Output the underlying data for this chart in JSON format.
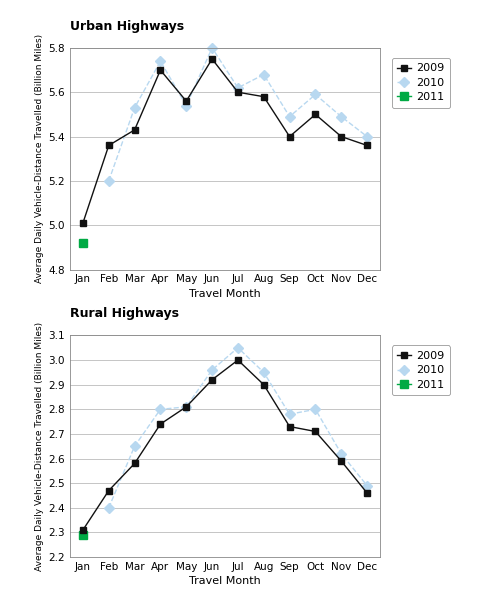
{
  "months": [
    "Jan",
    "Feb",
    "Mar",
    "Apr",
    "May",
    "Jun",
    "Jul",
    "Aug",
    "Sep",
    "Oct",
    "Nov",
    "Dec"
  ],
  "urban": {
    "2009": [
      5.01,
      5.36,
      5.43,
      5.7,
      5.56,
      5.75,
      5.6,
      5.58,
      5.4,
      5.5,
      5.4,
      5.36
    ],
    "2010": [
      null,
      5.2,
      5.53,
      5.74,
      5.54,
      5.8,
      5.62,
      5.68,
      5.49,
      5.59,
      5.49,
      5.4
    ],
    "2011": [
      4.92,
      null,
      null,
      null,
      null,
      null,
      null,
      null,
      null,
      null,
      null,
      null
    ]
  },
  "rural": {
    "2009": [
      2.31,
      2.47,
      2.58,
      2.74,
      2.81,
      2.92,
      3.0,
      2.9,
      2.73,
      2.71,
      2.59,
      2.46
    ],
    "2010": [
      null,
      2.4,
      2.65,
      2.8,
      2.81,
      2.96,
      3.05,
      2.95,
      2.78,
      2.8,
      2.62,
      2.49
    ],
    "2011": [
      2.29,
      null,
      null,
      null,
      null,
      null,
      null,
      null,
      null,
      null,
      null,
      null
    ]
  },
  "color_2009": "#111111",
  "color_2010": "#b8d8f0",
  "color_2011": "#00aa44",
  "urban_ylim": [
    4.8,
    5.8
  ],
  "urban_yticks": [
    4.8,
    5.0,
    5.2,
    5.4,
    5.6,
    5.8
  ],
  "rural_ylim": [
    2.2,
    3.1
  ],
  "rural_yticks": [
    2.2,
    2.3,
    2.4,
    2.5,
    2.6,
    2.7,
    2.8,
    2.9,
    3.0,
    3.1
  ],
  "ylabel": "Average Daily Vehicle-Distance Travelled (Billion Miles)",
  "xlabel": "Travel Month",
  "urban_title": "Urban Highways",
  "rural_title": "Rural Highways"
}
